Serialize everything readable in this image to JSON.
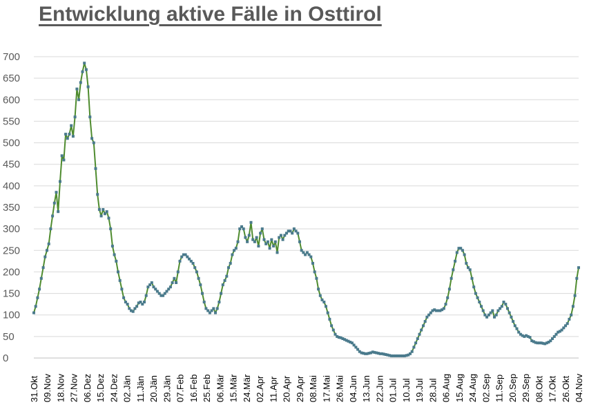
{
  "title": "Entwicklung aktive Fälle in Osttirol",
  "colors": {
    "line": "#4E8B2E",
    "marker": "#4A7A8C",
    "grid": "#D9D9D9",
    "axis_text": "#595959"
  },
  "chart_data": {
    "type": "line",
    "title": "Entwicklung aktive Fälle in Osttirol",
    "xlabel": "",
    "ylabel": "",
    "ylim": [
      0,
      700
    ],
    "yticks": [
      0,
      50,
      100,
      150,
      200,
      250,
      300,
      350,
      400,
      450,
      500,
      550,
      600,
      650,
      700
    ],
    "grid": "horizontal",
    "legend": "none",
    "markers": "square",
    "x_start": "2020-10-31",
    "x_end": "2021-11-04",
    "x_tick_labels": [
      "31.Okt",
      "09.Nov",
      "18.Nov",
      "27.Nov",
      "06.Dez",
      "15.Dez",
      "24.Dez",
      "02.Jän",
      "11.Jän",
      "20.Jän",
      "29.Jän",
      "07.Feb",
      "16.Feb",
      "25.Feb",
      "06.Mär",
      "15.Mär",
      "24.Mär",
      "02.Apr",
      "11.Apr",
      "20.Apr",
      "29.Apr",
      "08.Mai",
      "17.Mai",
      "26.Mai",
      "04.Jun",
      "13.Jun",
      "22.Jun",
      "01.Jul",
      "10.Jul",
      "19.Jul",
      "28.Jul",
      "06.Aug",
      "15.Aug",
      "24.Aug",
      "02.Sep",
      "11.Sep",
      "20.Sep",
      "29.Sep",
      "08.Okt",
      "17.Okt",
      "26.Okt",
      "04.Nov"
    ],
    "series": [
      {
        "values": [
          105,
          120,
          140,
          160,
          185,
          210,
          235,
          250,
          265,
          300,
          330,
          360,
          385,
          340,
          410,
          470,
          460,
          520,
          510,
          520,
          540,
          515,
          560,
          625,
          600,
          640,
          665,
          685,
          670,
          630,
          560,
          510,
          500,
          440,
          380,
          345,
          330,
          345,
          335,
          340,
          325,
          300,
          260,
          240,
          225,
          200,
          180,
          160,
          140,
          130,
          125,
          115,
          110,
          108,
          115,
          120,
          128,
          130,
          125,
          130,
          145,
          165,
          170,
          175,
          165,
          160,
          155,
          150,
          145,
          145,
          150,
          155,
          160,
          165,
          175,
          185,
          175,
          200,
          225,
          235,
          240,
          240,
          235,
          230,
          225,
          220,
          210,
          200,
          185,
          170,
          150,
          130,
          115,
          110,
          105,
          110,
          115,
          105,
          115,
          130,
          150,
          170,
          180,
          190,
          210,
          220,
          240,
          250,
          255,
          270,
          300,
          305,
          300,
          280,
          270,
          285,
          315,
          275,
          270,
          280,
          260,
          290,
          300,
          275,
          265,
          270,
          255,
          275,
          260,
          270,
          245,
          280,
          285,
          275,
          285,
          290,
          295,
          295,
          290,
          300,
          295,
          290,
          270,
          250,
          245,
          240,
          245,
          240,
          235,
          220,
          200,
          185,
          160,
          145,
          135,
          130,
          120,
          105,
          90,
          75,
          65,
          55,
          50,
          48,
          47,
          45,
          43,
          41,
          39,
          37,
          35,
          30,
          25,
          20,
          15,
          12,
          11,
          10,
          10,
          11,
          12,
          14,
          13,
          12,
          11,
          10,
          10,
          9,
          8,
          7,
          6,
          5,
          5,
          5,
          5,
          5,
          5,
          5,
          5,
          6,
          7,
          10,
          15,
          25,
          35,
          45,
          55,
          65,
          75,
          85,
          95,
          100,
          105,
          110,
          112,
          110,
          110,
          110,
          112,
          115,
          125,
          140,
          160,
          185,
          205,
          225,
          245,
          255,
          255,
          250,
          240,
          220,
          210,
          205,
          185,
          165,
          150,
          140,
          130,
          120,
          110,
          100,
          95,
          100,
          105,
          110,
          95,
          100,
          110,
          115,
          120,
          130,
          125,
          115,
          105,
          95,
          85,
          75,
          68,
          60,
          55,
          52,
          50,
          52,
          50,
          48,
          40,
          38,
          36,
          35,
          35,
          35,
          34,
          33,
          35,
          37,
          40,
          45,
          50,
          55,
          60,
          62,
          65,
          70,
          75,
          80,
          90,
          100,
          120,
          145,
          185,
          210
        ]
      }
    ]
  },
  "y_labels": [
    "0",
    "50",
    "100",
    "150",
    "200",
    "250",
    "300",
    "350",
    "400",
    "450",
    "500",
    "550",
    "600",
    "650",
    "700"
  ]
}
